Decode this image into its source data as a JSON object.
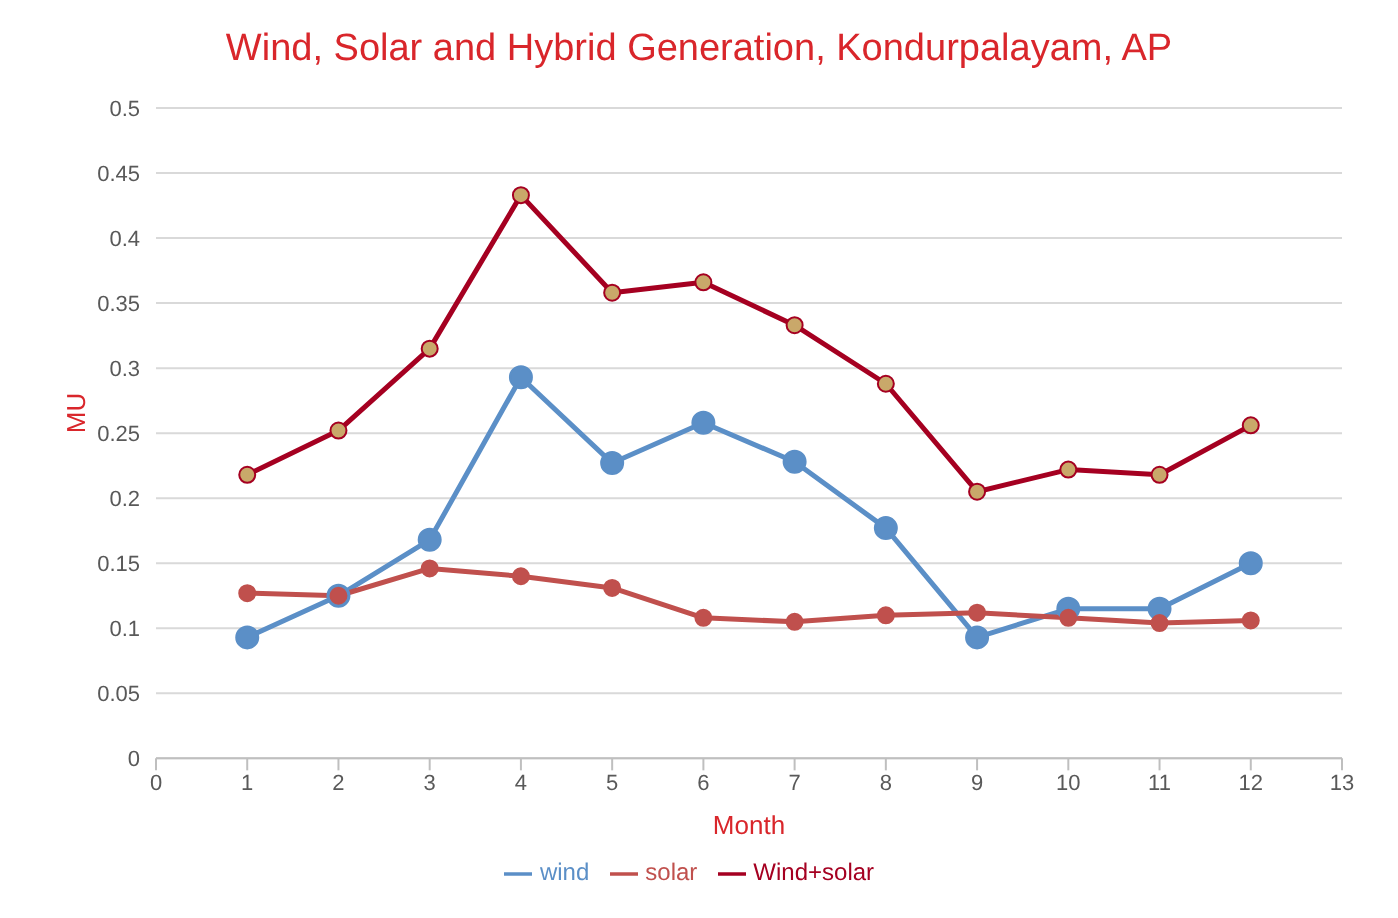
{
  "chart_data": {
    "type": "line",
    "title": "Wind, Solar and Hybrid Generation, Kondurpalayam, AP",
    "xlabel": "Month",
    "ylabel": "MU",
    "x": [
      1,
      2,
      3,
      4,
      5,
      6,
      7,
      8,
      9,
      10,
      11,
      12
    ],
    "series": [
      {
        "name": "wind",
        "color": "#5b8fc7",
        "values": [
          0.093,
          0.125,
          0.168,
          0.293,
          0.227,
          0.258,
          0.228,
          0.177,
          0.093,
          0.115,
          0.115,
          0.15
        ]
      },
      {
        "name": "solar",
        "color": "#c0504d",
        "values": [
          0.127,
          0.125,
          0.146,
          0.14,
          0.131,
          0.108,
          0.105,
          0.11,
          0.112,
          0.108,
          0.104,
          0.106
        ]
      },
      {
        "name": "Wind+solar",
        "color": "#a50021",
        "values": [
          0.218,
          0.252,
          0.315,
          0.433,
          0.358,
          0.366,
          0.333,
          0.288,
          0.205,
          0.222,
          0.218,
          0.256
        ]
      }
    ],
    "xlim": [
      0,
      13
    ],
    "xticks": [
      0,
      1,
      2,
      3,
      4,
      5,
      6,
      7,
      8,
      9,
      10,
      11,
      12,
      13
    ],
    "ylim": [
      0,
      0.5
    ],
    "yticks": [
      0,
      0.05,
      0.1,
      0.15,
      0.2,
      0.25,
      0.3,
      0.35,
      0.4,
      0.45,
      0.5
    ],
    "grid": "y",
    "legend": "bottom",
    "marker": "circle",
    "line_style": "solid"
  }
}
